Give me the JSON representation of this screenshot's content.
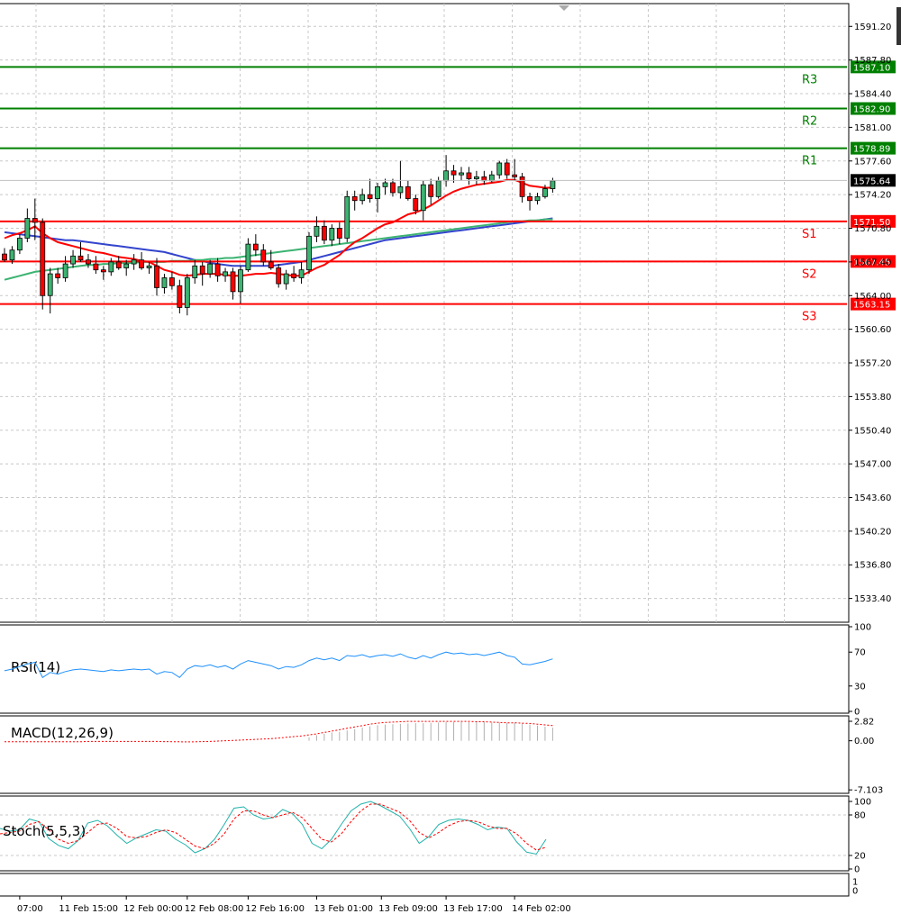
{
  "chart_data": {
    "type": "candlestick",
    "main": {
      "ylim": [
        1531.0,
        1593.5
      ],
      "y_ticks": [
        "1591.20",
        "1587.80",
        "1584.40",
        "1581.00",
        "1577.60",
        "1574.20",
        "1570.80",
        "1567.40",
        "1564.00",
        "1560.60",
        "1557.20",
        "1553.80",
        "1550.40",
        "1547.00",
        "1543.60",
        "1540.20",
        "1536.80",
        "1533.40"
      ],
      "current_price": 1575.64,
      "current_price_label": "1575.64",
      "levels": [
        {
          "name": "R3",
          "value": 1587.1,
          "label": "1587.10",
          "color": "#008000"
        },
        {
          "name": "R2",
          "value": 1582.9,
          "label": "1582.90",
          "color": "#008000"
        },
        {
          "name": "R1",
          "value": 1578.89,
          "label": "1578.89",
          "color": "#008000"
        },
        {
          "name": "S1",
          "value": 1571.5,
          "label": "1571.50",
          "color": "#ff0000"
        },
        {
          "name": "S2",
          "value": 1567.45,
          "label": "1567.45",
          "color": "#ff0000"
        },
        {
          "name": "S3",
          "value": 1563.15,
          "label": "1563.15",
          "color": "#ff0000"
        }
      ],
      "candles": [
        [
          1568.2,
          1568.8,
          1567.4,
          1567.6
        ],
        [
          1567.6,
          1569.0,
          1567.2,
          1568.6
        ],
        [
          1568.6,
          1570.2,
          1568.2,
          1569.8
        ],
        [
          1569.8,
          1572.8,
          1569.4,
          1571.8
        ],
        [
          1571.8,
          1573.8,
          1569.6,
          1571.4
        ],
        [
          1571.4,
          1571.8,
          1562.6,
          1564.0
        ],
        [
          1564.0,
          1566.8,
          1562.2,
          1566.2
        ],
        [
          1566.2,
          1566.8,
          1565.2,
          1565.8
        ],
        [
          1565.8,
          1568.0,
          1565.4,
          1567.2
        ],
        [
          1567.2,
          1568.6,
          1566.8,
          1568.0
        ],
        [
          1568.0,
          1569.4,
          1567.4,
          1567.6
        ],
        [
          1567.6,
          1568.2,
          1566.8,
          1567.2
        ],
        [
          1567.2,
          1568.0,
          1566.2,
          1566.6
        ],
        [
          1566.6,
          1567.0,
          1565.6,
          1566.4
        ],
        [
          1566.4,
          1567.8,
          1566.0,
          1567.4
        ],
        [
          1567.4,
          1568.0,
          1566.6,
          1566.8
        ],
        [
          1566.8,
          1567.6,
          1566.0,
          1567.2
        ],
        [
          1567.2,
          1568.2,
          1566.6,
          1567.6
        ],
        [
          1567.6,
          1568.4,
          1566.6,
          1566.8
        ],
        [
          1566.8,
          1567.4,
          1566.2,
          1567.0
        ],
        [
          1567.0,
          1567.8,
          1564.0,
          1564.8
        ],
        [
          1564.8,
          1566.2,
          1564.2,
          1565.8
        ],
        [
          1565.8,
          1566.4,
          1564.6,
          1565.0
        ],
        [
          1565.0,
          1565.6,
          1562.2,
          1562.8
        ],
        [
          1562.8,
          1566.2,
          1562.0,
          1565.8
        ],
        [
          1565.8,
          1567.6,
          1565.2,
          1567.0
        ],
        [
          1567.0,
          1567.4,
          1565.0,
          1566.2
        ],
        [
          1566.2,
          1567.6,
          1565.8,
          1567.2
        ],
        [
          1567.2,
          1567.8,
          1565.4,
          1566.0
        ],
        [
          1566.0,
          1566.8,
          1565.4,
          1566.4
        ],
        [
          1566.4,
          1566.8,
          1563.6,
          1564.4
        ],
        [
          1564.4,
          1567.0,
          1563.2,
          1566.6
        ],
        [
          1566.6,
          1569.8,
          1566.4,
          1569.2
        ],
        [
          1569.2,
          1570.2,
          1568.0,
          1568.6
        ],
        [
          1568.6,
          1569.2,
          1567.0,
          1567.4
        ],
        [
          1567.4,
          1568.6,
          1566.6,
          1566.8
        ],
        [
          1566.8,
          1567.2,
          1564.8,
          1565.2
        ],
        [
          1565.2,
          1566.6,
          1564.6,
          1566.2
        ],
        [
          1566.2,
          1567.0,
          1565.4,
          1565.8
        ],
        [
          1565.8,
          1567.4,
          1565.2,
          1566.6
        ],
        [
          1566.6,
          1570.4,
          1566.2,
          1570.0
        ],
        [
          1570.0,
          1572.0,
          1569.4,
          1571.0
        ],
        [
          1571.0,
          1571.6,
          1569.2,
          1569.6
        ],
        [
          1569.6,
          1571.2,
          1569.0,
          1570.8
        ],
        [
          1570.8,
          1571.4,
          1569.2,
          1569.8
        ],
        [
          1569.8,
          1574.6,
          1569.4,
          1574.0
        ],
        [
          1574.0,
          1574.6,
          1572.6,
          1573.6
        ],
        [
          1573.6,
          1574.8,
          1573.2,
          1574.2
        ],
        [
          1574.2,
          1575.8,
          1573.4,
          1573.8
        ],
        [
          1573.8,
          1575.4,
          1572.4,
          1575.0
        ],
        [
          1575.0,
          1575.8,
          1574.2,
          1575.4
        ],
        [
          1575.4,
          1575.8,
          1574.0,
          1574.4
        ],
        [
          1574.4,
          1577.6,
          1573.8,
          1575.0
        ],
        [
          1575.0,
          1575.6,
          1573.6,
          1573.8
        ],
        [
          1573.8,
          1574.2,
          1572.2,
          1572.6
        ],
        [
          1572.6,
          1575.6,
          1571.6,
          1575.2
        ],
        [
          1575.2,
          1575.8,
          1573.2,
          1574.0
        ],
        [
          1574.0,
          1576.0,
          1573.8,
          1575.6
        ],
        [
          1575.6,
          1578.2,
          1575.0,
          1576.6
        ],
        [
          1576.6,
          1577.2,
          1575.4,
          1576.2
        ],
        [
          1576.2,
          1577.0,
          1575.6,
          1576.4
        ],
        [
          1576.4,
          1577.0,
          1575.2,
          1575.8
        ],
        [
          1575.8,
          1576.6,
          1575.2,
          1576.0
        ],
        [
          1576.0,
          1576.6,
          1575.2,
          1575.6
        ],
        [
          1575.6,
          1576.6,
          1575.4,
          1576.2
        ],
        [
          1576.2,
          1577.6,
          1575.8,
          1577.4
        ],
        [
          1577.4,
          1577.8,
          1575.8,
          1576.2
        ],
        [
          1576.2,
          1577.8,
          1575.6,
          1576.0
        ],
        [
          1576.0,
          1576.4,
          1573.4,
          1574.0
        ],
        [
          1574.0,
          1574.4,
          1572.6,
          1573.6
        ],
        [
          1573.6,
          1574.4,
          1573.2,
          1574.0
        ],
        [
          1574.0,
          1575.2,
          1573.8,
          1574.8
        ],
        [
          1574.8,
          1575.9,
          1574.4,
          1575.6
        ]
      ],
      "ma_red": [
        1569.8,
        1570.1,
        1570.3,
        1570.6,
        1571.0,
        1570.3,
        1569.8,
        1569.4,
        1569.2,
        1569.0,
        1568.8,
        1568.6,
        1568.4,
        1568.3,
        1568.1,
        1567.9,
        1567.8,
        1567.7,
        1567.5,
        1567.4,
        1567.0,
        1566.6,
        1566.4,
        1566.1,
        1566.0,
        1566.1,
        1566.2,
        1566.2,
        1566.2,
        1566.1,
        1566.0,
        1566.0,
        1566.1,
        1566.2,
        1566.2,
        1566.3,
        1566.2,
        1566.1,
        1566.0,
        1566.0,
        1566.4,
        1566.8,
        1567.1,
        1567.6,
        1568.1,
        1568.8,
        1569.4,
        1569.8,
        1570.3,
        1570.8,
        1571.2,
        1571.4,
        1571.8,
        1572.2,
        1572.4,
        1572.7,
        1573.1,
        1573.6,
        1574.1,
        1574.5,
        1574.8,
        1575.0,
        1575.2,
        1575.3,
        1575.4,
        1575.5,
        1575.7,
        1575.7,
        1575.4,
        1575.1,
        1575.0,
        1574.9,
        1574.9
      ],
      "ma_blue": [
        1570.4,
        1570.3,
        1570.2,
        1570.1,
        1570.0,
        1569.9,
        1569.8,
        1569.7,
        1569.6,
        1569.6,
        1569.5,
        1569.4,
        1569.3,
        1569.2,
        1569.1,
        1569.0,
        1568.9,
        1568.8,
        1568.7,
        1568.6,
        1568.5,
        1568.4,
        1568.2,
        1568.0,
        1567.8,
        1567.6,
        1567.5,
        1567.3,
        1567.2,
        1567.1,
        1567.0,
        1567.0,
        1567.0,
        1567.0,
        1567.0,
        1567.0,
        1567.1,
        1567.2,
        1567.3,
        1567.4,
        1567.6,
        1567.8,
        1568.0,
        1568.2,
        1568.4,
        1568.6,
        1568.8,
        1569.0,
        1569.2,
        1569.4,
        1569.6,
        1569.7,
        1569.8,
        1569.9,
        1570.0,
        1570.1,
        1570.2,
        1570.3,
        1570.4,
        1570.5,
        1570.6,
        1570.7,
        1570.8,
        1570.9,
        1571.0,
        1571.1,
        1571.2,
        1571.3,
        1571.4,
        1571.5,
        1571.6,
        1571.7,
        1571.8
      ],
      "ma_green": [
        1565.6,
        1565.8,
        1566.0,
        1566.2,
        1566.4,
        1566.5,
        1566.6,
        1566.7,
        1566.8,
        1566.9,
        1567.0,
        1567.1,
        1567.1,
        1567.2,
        1567.2,
        1567.3,
        1567.3,
        1567.3,
        1567.4,
        1567.4,
        1567.4,
        1567.4,
        1567.5,
        1567.5,
        1567.5,
        1567.6,
        1567.6,
        1567.7,
        1567.7,
        1567.8,
        1567.8,
        1567.9,
        1568.0,
        1568.1,
        1568.2,
        1568.3,
        1568.4,
        1568.5,
        1568.6,
        1568.7,
        1568.8,
        1568.9,
        1569.0,
        1569.1,
        1569.2,
        1569.3,
        1569.4,
        1569.5,
        1569.6,
        1569.7,
        1569.8,
        1569.9,
        1570.0,
        1570.1,
        1570.2,
        1570.3,
        1570.4,
        1570.5,
        1570.6,
        1570.7,
        1570.8,
        1570.9,
        1571.0,
        1571.1,
        1571.2,
        1571.3,
        1571.4,
        1571.5,
        1571.5,
        1571.6,
        1571.6,
        1571.7,
        1571.7
      ]
    },
    "x_ticks": [
      {
        "label": "07:00",
        "idx": 2
      },
      {
        "label": "11 Feb 15:00",
        "idx": 7.5
      },
      {
        "label": "12 Feb 00:00",
        "idx": 16
      },
      {
        "label": "12 Feb 08:00",
        "idx": 24
      },
      {
        "label": "12 Feb 16:00",
        "idx": 32
      },
      {
        "label": "13 Feb 01:00",
        "idx": 41
      },
      {
        "label": "13 Feb 09:00",
        "idx": 49.5
      },
      {
        "label": "13 Feb 17:00",
        "idx": 58
      },
      {
        "label": "14 Feb 02:00",
        "idx": 67
      }
    ],
    "rsi": {
      "label": "RSI(14)",
      "ylim": [
        0,
        100
      ],
      "y_ticks": [
        "100",
        "70",
        "30",
        "0"
      ],
      "y_tick_values": [
        100,
        70,
        30,
        0
      ],
      "values": [
        48,
        50,
        53,
        56,
        58,
        40,
        46,
        44,
        47,
        49,
        50,
        49,
        48,
        47,
        49,
        48,
        49,
        50,
        49,
        50,
        44,
        47,
        46,
        40,
        50,
        54,
        53,
        55,
        52,
        54,
        50,
        56,
        60,
        58,
        56,
        54,
        50,
        53,
        52,
        55,
        60,
        63,
        61,
        63,
        60,
        66,
        65,
        67,
        64,
        66,
        67,
        65,
        68,
        64,
        62,
        66,
        63,
        67,
        70,
        68,
        69,
        67,
        68,
        66,
        68,
        70,
        66,
        64,
        56,
        55,
        57,
        59,
        62
      ]
    },
    "macd": {
      "label": "MACD(12,26,9)",
      "y_ticks": [
        "2.82",
        "0.00",
        "-7.103"
      ],
      "y_tick_values": [
        2.82,
        0,
        -7.103
      ],
      "ylim": [
        -7.6,
        3.6
      ],
      "hist": [
        0.0,
        0.0,
        0.0,
        0.0,
        0.0,
        0.0,
        0.0,
        0.0,
        0.0,
        0.0,
        0.0,
        0.0,
        0.0,
        0.0,
        0.0,
        0.0,
        0.0,
        0.0,
        0.0,
        0.0,
        0.0,
        0.0,
        0.0,
        0.0,
        0.0,
        0.0,
        0.0,
        0.0,
        0.0,
        0.0,
        0.0,
        0.0,
        0.0,
        0.0,
        0.0,
        0.0,
        0.0,
        0.0,
        0.0,
        0.0,
        0.5,
        0.8,
        1.0,
        1.2,
        1.3,
        1.5,
        1.7,
        1.9,
        2.1,
        2.25,
        2.35,
        2.4,
        2.45,
        2.5,
        2.55,
        2.55,
        2.6,
        2.65,
        2.7,
        2.7,
        2.7,
        2.7,
        2.7,
        2.7,
        2.65,
        2.65,
        2.6,
        2.6,
        2.5,
        2.35,
        2.2,
        2.05,
        1.9
      ],
      "signal": [
        -0.15,
        -0.15,
        -0.15,
        -0.15,
        -0.15,
        -0.15,
        -0.15,
        -0.15,
        -0.15,
        -0.15,
        -0.15,
        -0.1,
        -0.1,
        -0.1,
        -0.1,
        -0.1,
        -0.1,
        -0.1,
        -0.1,
        -0.1,
        -0.1,
        -0.12,
        -0.14,
        -0.15,
        -0.16,
        -0.15,
        -0.12,
        -0.1,
        -0.05,
        0.0,
        0.05,
        0.1,
        0.15,
        0.2,
        0.25,
        0.3,
        0.4,
        0.5,
        0.6,
        0.7,
        0.85,
        1.0,
        1.2,
        1.4,
        1.6,
        1.8,
        2.0,
        2.2,
        2.4,
        2.55,
        2.65,
        2.7,
        2.75,
        2.8,
        2.8,
        2.8,
        2.8,
        2.8,
        2.8,
        2.8,
        2.8,
        2.8,
        2.75,
        2.75,
        2.7,
        2.65,
        2.6,
        2.6,
        2.55,
        2.5,
        2.4,
        2.3,
        2.2
      ]
    },
    "stoch": {
      "label": "Stoch(5,5,3)",
      "y_ticks": [
        "100",
        "80",
        "20",
        "0"
      ],
      "y_tick_values": [
        100,
        80,
        20,
        0
      ],
      "ylim": [
        0,
        100
      ],
      "k": [
        60,
        56,
        58,
        74,
        70,
        45,
        35,
        30,
        42,
        68,
        72,
        64,
        50,
        38,
        46,
        52,
        58,
        56,
        44,
        36,
        24,
        30,
        44,
        66,
        90,
        92,
        80,
        74,
        76,
        88,
        82,
        66,
        38,
        30,
        44,
        66,
        86,
        96,
        100,
        94,
        86,
        78,
        60,
        38,
        48,
        66,
        72,
        74,
        72,
        66,
        58,
        62,
        60,
        40,
        25,
        22,
        44
      ],
      "d": [
        52,
        54,
        56,
        66,
        70,
        58,
        44,
        38,
        42,
        54,
        66,
        68,
        60,
        48,
        46,
        48,
        54,
        58,
        54,
        44,
        34,
        30,
        38,
        52,
        74,
        86,
        86,
        80,
        76,
        80,
        84,
        76,
        60,
        44,
        40,
        52,
        70,
        86,
        96,
        96,
        90,
        84,
        72,
        54,
        46,
        54,
        64,
        70,
        72,
        70,
        64,
        60,
        60,
        52,
        38,
        28,
        32
      ]
    },
    "last_pane": {
      "y_ticks": [
        "1",
        "0"
      ],
      "y_tick_values": [
        1,
        0
      ]
    }
  }
}
